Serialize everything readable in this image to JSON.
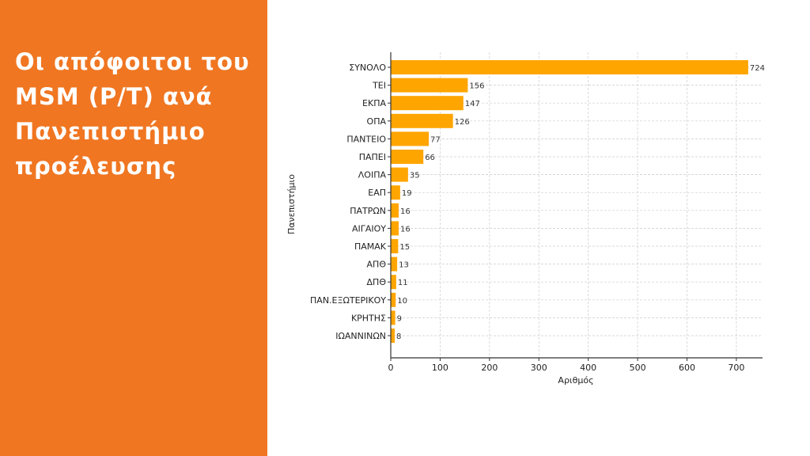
{
  "slide": {
    "title": "Οι απόφοιτοι του MSM (P/T) ανά Πανεπιστήμιο προέλευσης",
    "accent": "#F07622"
  },
  "chart_data": {
    "type": "bar",
    "orientation": "horizontal",
    "categories": [
      "ΣΥΝΟΛΟ",
      "ΤΕΙ",
      "ΕΚΠΑ",
      "ΟΠΑ",
      "ΠΑΝΤΕΙΟ",
      "ΠΑΠΕΙ",
      "ΛΟΙΠΑ",
      "ΕΑΠ",
      "ΠΑΤΡΩΝ",
      "ΑΙΓΑΙΟΥ",
      "ΠΑΜΑΚ",
      "ΑΠΘ",
      "ΔΠΘ",
      "ΠΑΝ.ΕΞΩΤΕΡΙΚΟΥ",
      "ΚΡΗΤΗΣ",
      "ΙΩΑΝΝΙΝΩΝ"
    ],
    "values": [
      724,
      156,
      147,
      126,
      77,
      66,
      35,
      19,
      16,
      16,
      15,
      13,
      11,
      10,
      9,
      8
    ],
    "title": "",
    "xlabel": "Αριθμός",
    "ylabel": "Πανεπιστήμιο",
    "xlim": [
      0,
      753
    ],
    "xticks": [
      0,
      100,
      200,
      300,
      400,
      500,
      600,
      700
    ],
    "grid": true,
    "bar_color": "#FFA500"
  }
}
